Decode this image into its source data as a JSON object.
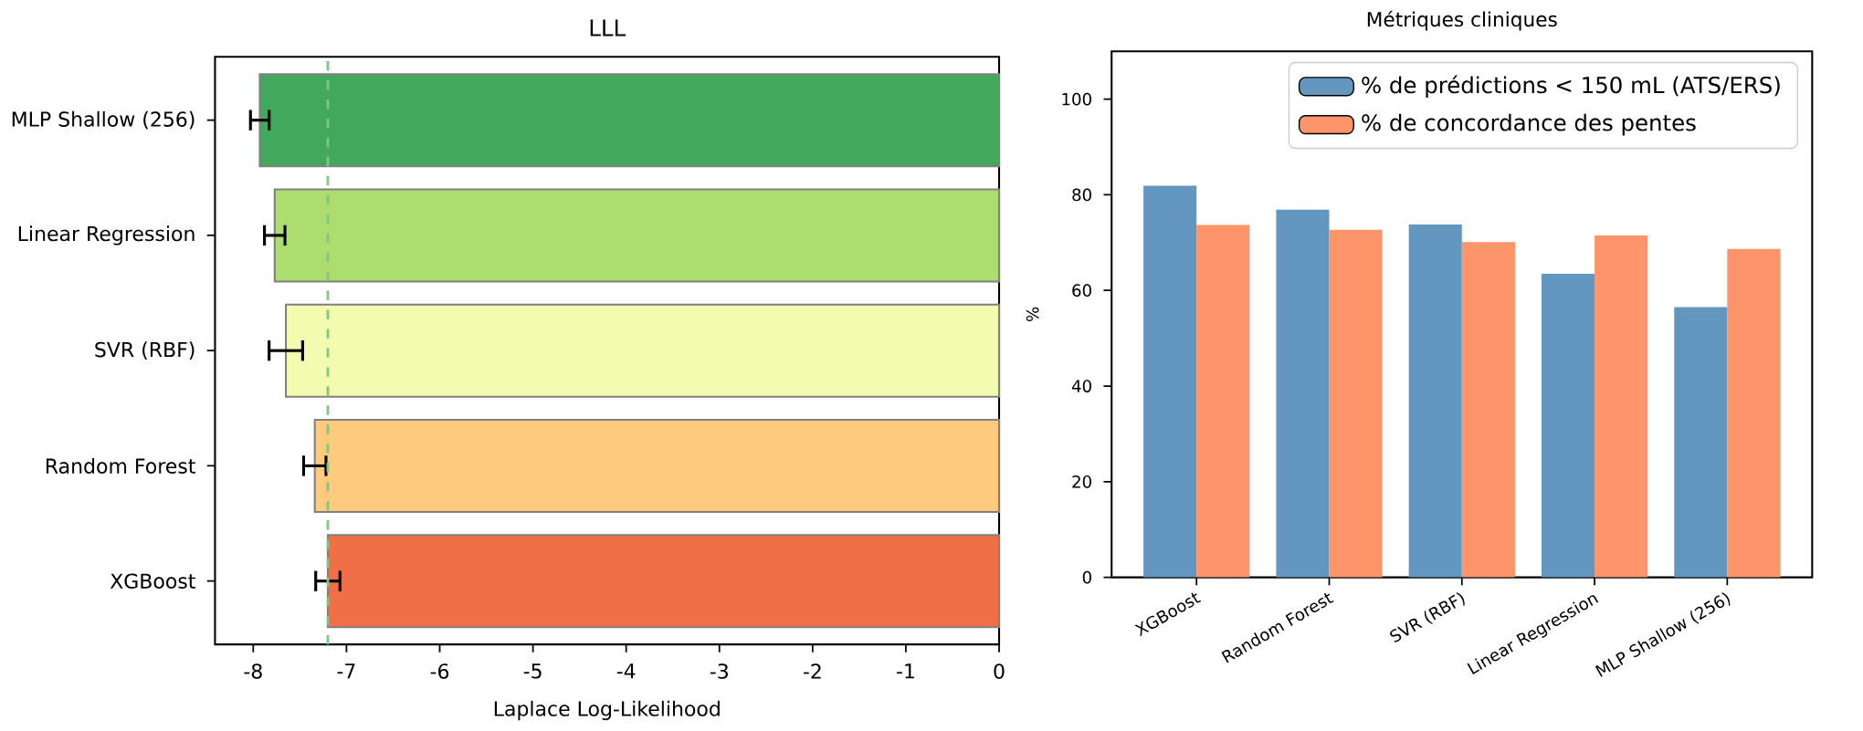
{
  "chart_data": [
    {
      "type": "bar",
      "orientation": "horizontal",
      "title": "LLL",
      "xlabel": "Laplace Log-Likelihood",
      "categories": [
        "MLP Shallow (256)",
        "Linear Regression",
        "SVR (RBF)",
        "Random Forest",
        "XGBoost"
      ],
      "values": [
        -7.93,
        -7.77,
        -7.65,
        -7.34,
        -7.2
      ],
      "errors": [
        0.1,
        0.11,
        0.18,
        0.12,
        0.13
      ],
      "colors": [
        "#42a85b",
        "#addc6f",
        "#f2fbb0",
        "#fdca7e",
        "#f16f46"
      ],
      "xlim": [
        -8.41,
        0
      ],
      "xticks": [
        -8,
        -7,
        -6,
        -5,
        -4,
        -3,
        -2,
        -1,
        0
      ],
      "ref_lines": [
        {
          "axis": "x",
          "value": -7.2,
          "color": "#80c880",
          "line_style": "dashed"
        }
      ]
    },
    {
      "type": "bar",
      "title": "Métriques cliniques",
      "ylabel": "%",
      "categories": [
        "XGBoost",
        "Random Forest",
        "SVR (RBF)",
        "Linear Regression",
        "MLP Shallow (256)"
      ],
      "series": [
        {
          "name": "% de prédictions < 150 mL (ATS/ERS)",
          "color": "#6497c0",
          "values": [
            81.9,
            76.9,
            73.8,
            63.5,
            56.5
          ]
        },
        {
          "name": "% de concordance des pentes",
          "color": "#fe9469",
          "values": [
            73.7,
            72.7,
            70.1,
            71.5,
            68.7
          ]
        }
      ],
      "ylim": [
        0,
        110
      ],
      "yticks": [
        0,
        20,
        40,
        60,
        80,
        100
      ],
      "legend": "top right"
    }
  ]
}
